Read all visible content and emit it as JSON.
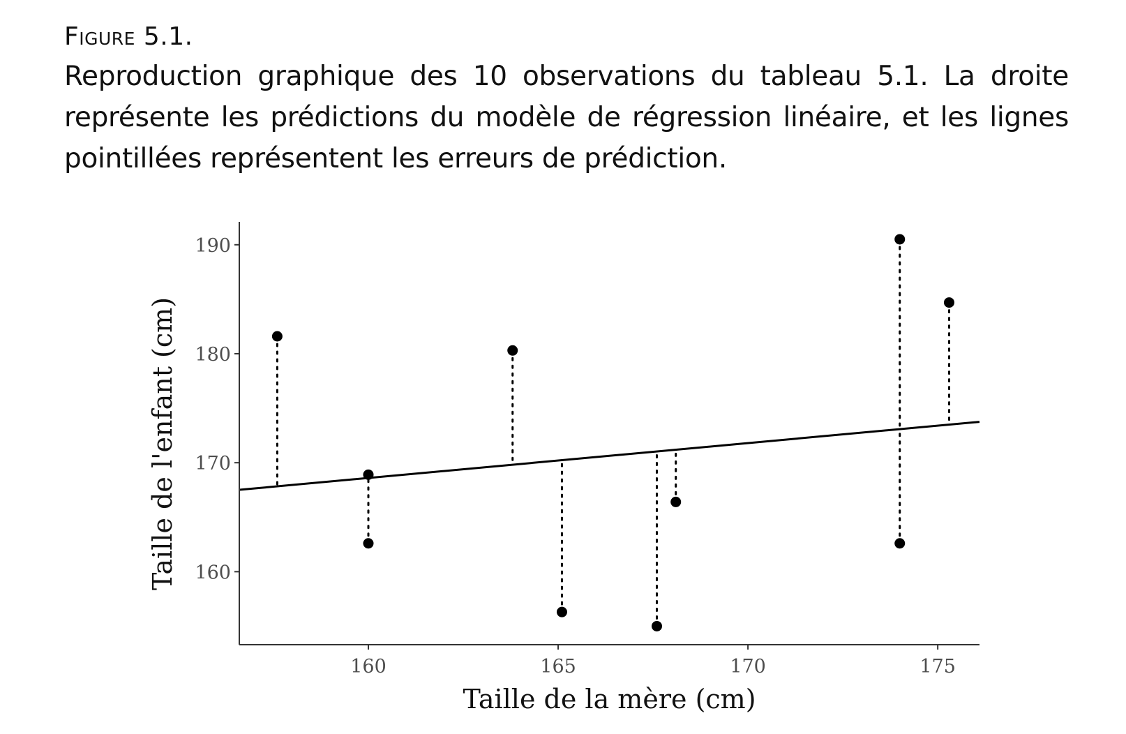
{
  "caption": {
    "figure_label": "Figure 5.1.",
    "text": "Reproduction graphique des 10 observations du tableau 5.1. La droite représente les prédictions du modèle de régression linéaire, et les lignes pointillées représentent les erreurs de prédiction."
  },
  "chart_data": {
    "type": "scatter",
    "xlabel": "Taille de la mère (cm)",
    "ylabel": "Taille de l'enfant (cm)",
    "xlim": [
      156.6,
      176.1
    ],
    "ylim": [
      153.3,
      192.1
    ],
    "x_ticks": [
      160,
      165,
      170,
      175
    ],
    "y_ticks": [
      160,
      170,
      180,
      190
    ],
    "grid": false,
    "regression_line": {
      "intercept": 117.4,
      "slope": 0.32
    },
    "residual_lines": "dotted",
    "points": [
      {
        "x": 157.6,
        "y": 181.6
      },
      {
        "x": 160.0,
        "y": 168.9
      },
      {
        "x": 160.0,
        "y": 162.6
      },
      {
        "x": 163.8,
        "y": 180.3
      },
      {
        "x": 165.1,
        "y": 156.3
      },
      {
        "x": 167.6,
        "y": 155.0
      },
      {
        "x": 168.1,
        "y": 166.4
      },
      {
        "x": 174.0,
        "y": 190.5
      },
      {
        "x": 174.0,
        "y": 162.6
      },
      {
        "x": 175.3,
        "y": 184.7
      }
    ]
  }
}
